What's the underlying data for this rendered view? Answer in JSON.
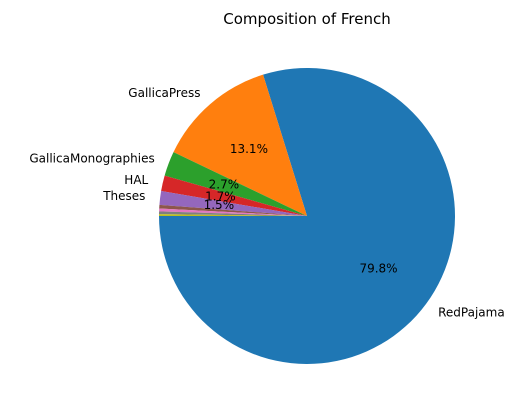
{
  "chart_data": {
    "type": "pie",
    "title": "Composition of French",
    "start_angle_deg": 180,
    "direction": "counterclockwise",
    "slices": [
      {
        "label": "RedPajama",
        "value": 79.8,
        "pct_label": "79.8%",
        "color": "#1f77b4"
      },
      {
        "label": "GallicaPress",
        "value": 13.1,
        "pct_label": "13.1%",
        "color": "#ff7f0e"
      },
      {
        "label": "GallicaMonographies",
        "value": 2.7,
        "pct_label": "2.7%",
        "color": "#2ca02c"
      },
      {
        "label": "HAL",
        "value": 1.7,
        "pct_label": "1.7%",
        "color": "#d62728"
      },
      {
        "label": "Theses",
        "value": 1.5,
        "pct_label": "1.5%",
        "color": "#9467bd"
      },
      {
        "label": "",
        "value": 0.4,
        "pct_label": "",
        "color": "#8c564b"
      },
      {
        "label": "",
        "value": 0.3,
        "pct_label": "",
        "color": "#e377c2"
      },
      {
        "label": "",
        "value": 0.3,
        "pct_label": "",
        "color": "#7f7f7f"
      },
      {
        "label": "",
        "value": 0.2,
        "pct_label": "",
        "color": "#bcbd22"
      }
    ]
  }
}
